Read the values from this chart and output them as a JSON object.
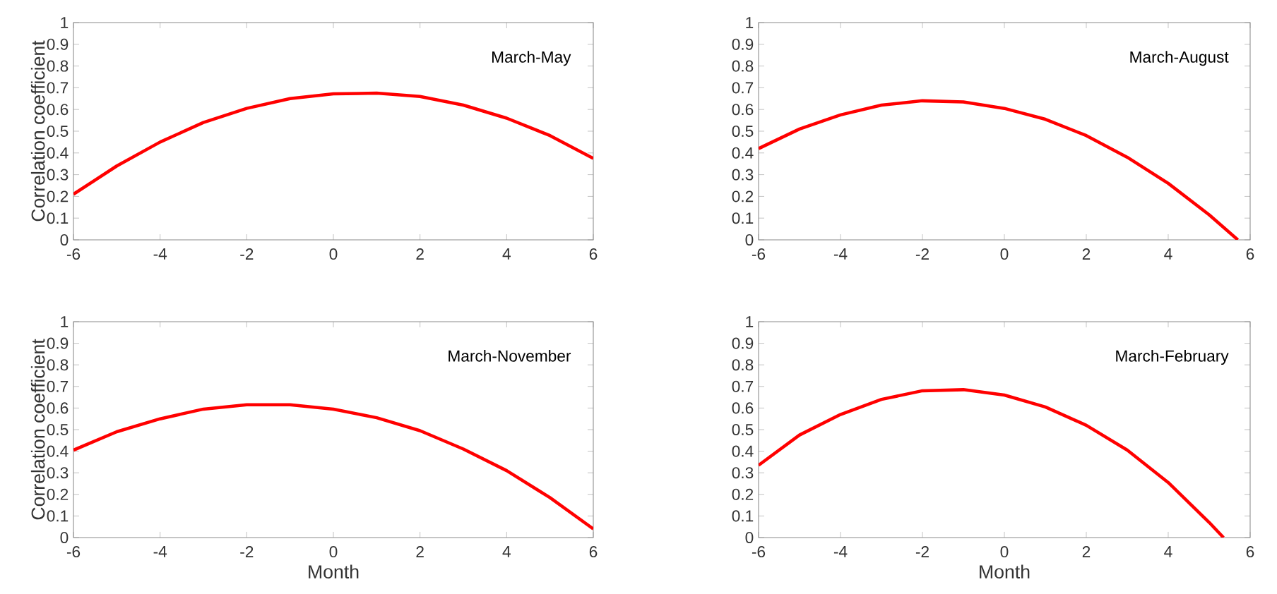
{
  "chart_data": [
    {
      "type": "line",
      "ylabel": "Correlation coefficient",
      "annotations": [
        "March-May"
      ],
      "xlim": [
        -6,
        6
      ],
      "ylim": [
        0,
        1
      ],
      "xticks": [
        -6,
        -4,
        -2,
        0,
        2,
        4,
        6
      ],
      "yticks": [
        0,
        0.1,
        0.2,
        0.3,
        0.4,
        0.5,
        0.6,
        0.7,
        0.8,
        0.9,
        1
      ],
      "series": [
        {
          "color": "#ff0000",
          "x": [
            -6,
            -5,
            -4,
            -3,
            -2,
            -1,
            0,
            1,
            2,
            3,
            4,
            5,
            6
          ],
          "values": [
            0.21,
            0.34,
            0.45,
            0.54,
            0.605,
            0.65,
            0.672,
            0.675,
            0.66,
            0.62,
            0.56,
            0.48,
            0.375
          ]
        }
      ]
    },
    {
      "type": "line",
      "annotations": [
        "March-August"
      ],
      "xlim": [
        -6,
        6
      ],
      "ylim": [
        0,
        1
      ],
      "xticks": [
        -6,
        -4,
        -2,
        0,
        2,
        4,
        6
      ],
      "yticks": [
        0,
        0.1,
        0.2,
        0.3,
        0.4,
        0.5,
        0.6,
        0.7,
        0.8,
        0.9,
        1
      ],
      "series": [
        {
          "color": "#ff0000",
          "x": [
            -6,
            -5,
            -4,
            -3,
            -2,
            -1,
            0,
            1,
            2,
            3,
            4,
            5,
            5.7
          ],
          "values": [
            0.42,
            0.51,
            0.575,
            0.62,
            0.64,
            0.635,
            0.605,
            0.555,
            0.48,
            0.38,
            0.26,
            0.115,
            0
          ]
        }
      ]
    },
    {
      "type": "line",
      "xlabel": "Month",
      "ylabel": "Correlation coefficient",
      "annotations": [
        "March-November"
      ],
      "xlim": [
        -6,
        6
      ],
      "ylim": [
        0,
        1
      ],
      "xticks": [
        -6,
        -4,
        -2,
        0,
        2,
        4,
        6
      ],
      "yticks": [
        0,
        0.1,
        0.2,
        0.3,
        0.4,
        0.5,
        0.6,
        0.7,
        0.8,
        0.9,
        1
      ],
      "series": [
        {
          "color": "#ff0000",
          "x": [
            -6,
            -5,
            -4,
            -3,
            -2,
            -1,
            0,
            1,
            2,
            3,
            4,
            5,
            6
          ],
          "values": [
            0.405,
            0.49,
            0.55,
            0.595,
            0.615,
            0.615,
            0.595,
            0.555,
            0.495,
            0.41,
            0.31,
            0.185,
            0.04
          ]
        }
      ]
    },
    {
      "type": "line",
      "xlabel": "Month",
      "annotations": [
        "March-February"
      ],
      "xlim": [
        -6,
        6
      ],
      "ylim": [
        0,
        1
      ],
      "xticks": [
        -6,
        -4,
        -2,
        0,
        2,
        4,
        6
      ],
      "yticks": [
        0,
        0.1,
        0.2,
        0.3,
        0.4,
        0.5,
        0.6,
        0.7,
        0.8,
        0.9,
        1
      ],
      "series": [
        {
          "color": "#ff0000",
          "x": [
            -6,
            -5,
            -4,
            -3,
            -2,
            -1,
            0,
            1,
            2,
            3,
            4,
            5,
            5.35
          ],
          "values": [
            0.335,
            0.475,
            0.57,
            0.64,
            0.68,
            0.685,
            0.66,
            0.605,
            0.52,
            0.405,
            0.255,
            0.07,
            0
          ]
        }
      ]
    }
  ]
}
